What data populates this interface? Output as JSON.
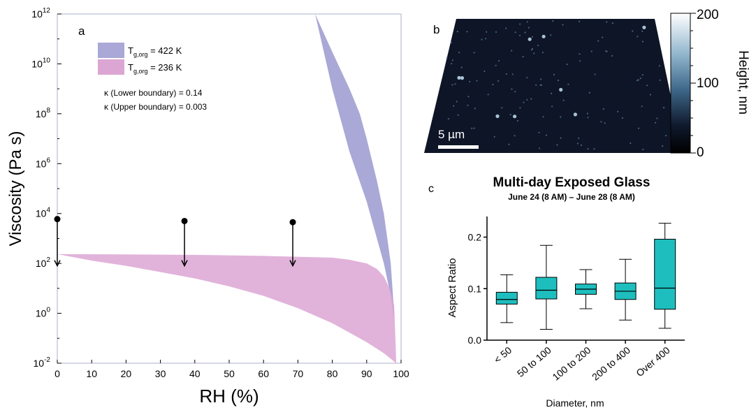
{
  "chart_data": [
    {
      "panel": "a",
      "type": "area",
      "xlabel": "RH (%)",
      "ylabel": "Viscosity (Pa s)",
      "xlim": [
        0,
        100
      ],
      "ylim": [
        0.01,
        1000000000000
      ],
      "yscale": "log",
      "x_ticks": [
        "0",
        "10",
        "20",
        "30",
        "40",
        "50",
        "60",
        "70",
        "80",
        "90",
        "100"
      ],
      "legend_location": "upper-left",
      "series": [
        {
          "name_main": "T",
          "name_sub": "g,org",
          "name_tail": " = 422 K",
          "color": "#a9a8d6",
          "upper": [
            [
              75,
              1000000000000.0
            ],
            [
              80,
              1000000000.0
            ],
            [
              85,
              3000000.0
            ],
            [
              90,
              30000.0
            ],
            [
              95,
              100.0
            ],
            [
              97,
              5
            ],
            [
              98,
              0.5
            ],
            [
              98.6,
              0.01
            ]
          ],
          "lower": [
            [
              75,
              1000000000000.0
            ],
            [
              80,
              30000000000.0
            ],
            [
              85,
              1000000000.0
            ],
            [
              88,
              100000000.0
            ],
            [
              90,
              10000000.0
            ],
            [
              93,
              200000.0
            ],
            [
              95,
              10000.0
            ],
            [
              97,
              100.0
            ],
            [
              98,
              1
            ],
            [
              98.6,
              0.01
            ]
          ]
        },
        {
          "name_main": "T",
          "name_sub": "g,org",
          "name_tail": " = 236 K",
          "color": "#dca6d3",
          "upper": [
            [
              0,
              235
            ],
            [
              20,
              230
            ],
            [
              40,
              220
            ],
            [
              60,
              200
            ],
            [
              80,
              170
            ],
            [
              85,
              140
            ],
            [
              90,
              100
            ],
            [
              93,
              60
            ],
            [
              95,
              30
            ],
            [
              97,
              8
            ],
            [
              98,
              2
            ],
            [
              98.6,
              0.01
            ]
          ],
          "lower": [
            [
              0,
              235
            ],
            [
              10,
              130
            ],
            [
              20,
              80
            ],
            [
              30,
              45
            ],
            [
              40,
              25
            ],
            [
              50,
              12
            ],
            [
              60,
              5
            ],
            [
              70,
              1.6
            ],
            [
              80,
              0.4
            ],
            [
              90,
              0.07
            ],
            [
              95,
              0.025
            ],
            [
              98.6,
              0.01
            ]
          ]
        }
      ],
      "annotations": [
        "κ (Lower boundary) = 0.14",
        "κ (Upper boundary) = 0.003"
      ],
      "arrows": [
        {
          "x": 0,
          "from": 6000,
          "to": 80
        },
        {
          "x": 37,
          "from": 5000,
          "to": 80
        },
        {
          "x": 68.5,
          "from": 4500,
          "to": 80
        }
      ]
    },
    {
      "panel": "b",
      "type": "heatmap",
      "colorbar_label": "Height, nm",
      "colorbar_ticks": [
        "200",
        "100",
        "0"
      ],
      "colorbar_range": [
        0,
        200
      ],
      "scale_bar": "5 µm"
    },
    {
      "panel": "c",
      "type": "box",
      "title": "Multi-day Exposed Glass",
      "subtitle": "June 24 (8 AM) – June 28 (8 AM)",
      "xlabel": "Diameter, nm",
      "ylabel": "Aspect Ratio",
      "ylim": [
        0,
        0.24
      ],
      "y_ticks": [
        "0.0",
        "0.1",
        "0.2"
      ],
      "categories": [
        "< 50",
        "50 to 100",
        "100 to 200",
        "200 to 400",
        "Over 400"
      ],
      "boxes": [
        {
          "min": 0.034,
          "q1": 0.07,
          "median": 0.079,
          "q3": 0.093,
          "max": 0.127
        },
        {
          "min": 0.021,
          "q1": 0.08,
          "median": 0.097,
          "q3": 0.122,
          "max": 0.184
        },
        {
          "min": 0.061,
          "q1": 0.089,
          "median": 0.099,
          "q3": 0.109,
          "max": 0.137
        },
        {
          "min": 0.039,
          "q1": 0.079,
          "median": 0.095,
          "q3": 0.111,
          "max": 0.157
        },
        {
          "min": 0.023,
          "q1": 0.06,
          "median": 0.101,
          "q3": 0.196,
          "max": 0.227
        }
      ],
      "color": "#1ebebe"
    }
  ],
  "panel_labels": {
    "a": "a",
    "b": "b",
    "c": "c"
  }
}
